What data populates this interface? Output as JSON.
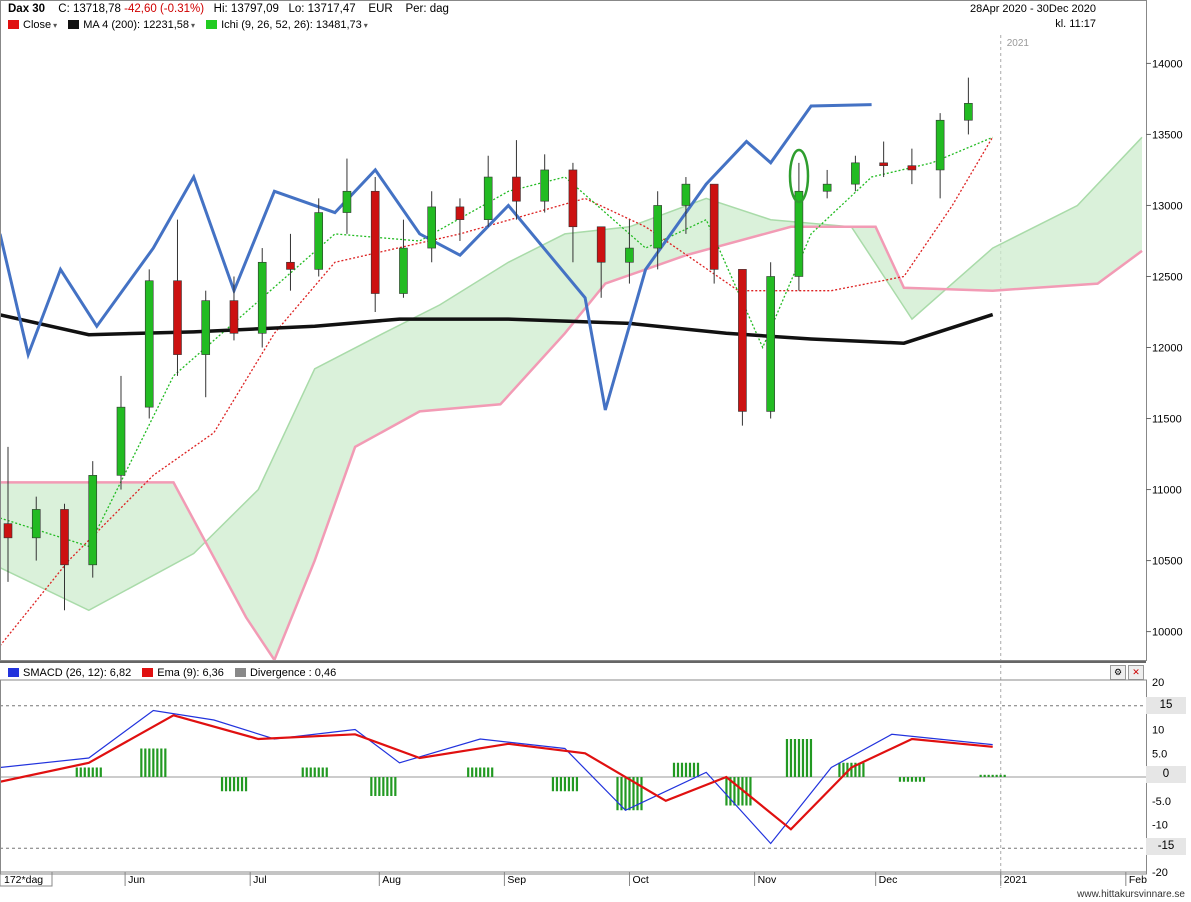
{
  "header": {
    "symbol": "Dax 30",
    "close": "C: 13718,78",
    "change": "-42,60 (-0.31%)",
    "high": "Hi: 13797,09",
    "low": "Lo: 13717,47",
    "currency": "EUR",
    "period": "Per: dag",
    "date_range": "28Apr 2020 - 30Dec 2020",
    "time": "kl. 11:17"
  },
  "legend": {
    "close": "Close",
    "ma": "MA 4 (200): 12231,58",
    "ichi": "Ichi (9, 26, 52, 26): 13481,73"
  },
  "lower_legend": {
    "smacd": "SMACD (26, 12): 6,82",
    "ema": "Ema (9): 6,36",
    "divergence": "Divergence : 0,46"
  },
  "axis": {
    "period_label": "172*dag",
    "year_label": "2021",
    "months": [
      "Jun",
      "Jul",
      "Aug",
      "Sep",
      "Oct",
      "Nov",
      "Dec",
      "2021",
      "Feb"
    ],
    "price_ticks": [
      "14000",
      "13500",
      "13000",
      "12500",
      "12000",
      "11500",
      "11000",
      "10500",
      "10000"
    ],
    "osc_ticks": [
      "20",
      "10",
      "5.0",
      "0",
      "-5.0",
      "-10",
      "-20"
    ],
    "osc_tags": [
      "15",
      "0",
      "-15"
    ]
  },
  "colors": {
    "up": "#22bb22",
    "down": "#cc1111",
    "ma": "#111111",
    "overlay": "#4472c4",
    "kumo_bull": "#cdeccd",
    "kumo_bear": "#fbd3de",
    "span_a": "#a9dba9",
    "span_b": "#f29bb5",
    "kijun": "#dd2222",
    "tenkan": "#22bb22",
    "smacd": "#2233dd",
    "ema": "#e01010",
    "hist": "#229922"
  },
  "footer": {
    "credit": "www.hittakursvinnare.se"
  },
  "chart_data": [
    {
      "type": "candlestick",
      "title": "Dax 30",
      "x_range": [
        "2020-04-28",
        "2020-12-30"
      ],
      "ylim": [
        9800,
        14200
      ],
      "series": [
        {
          "name": "Close",
          "type": "candlestick",
          "ohlc_weekly": [
            {
              "t": "2020-04-28",
              "o": 10760,
              "h": 11300,
              "l": 10350,
              "c": 10660
            },
            {
              "t": "2020-05-05",
              "o": 10660,
              "h": 10950,
              "l": 10500,
              "c": 10860
            },
            {
              "t": "2020-05-12",
              "o": 10860,
              "h": 10900,
              "l": 10150,
              "c": 10470
            },
            {
              "t": "2020-05-19",
              "o": 10470,
              "h": 11200,
              "l": 10380,
              "c": 11100
            },
            {
              "t": "2020-05-26",
              "o": 11100,
              "h": 11800,
              "l": 11000,
              "c": 11580
            },
            {
              "t": "2020-06-02",
              "o": 11580,
              "h": 12550,
              "l": 11500,
              "c": 12470
            },
            {
              "t": "2020-06-09",
              "o": 12470,
              "h": 12900,
              "l": 11800,
              "c": 11950
            },
            {
              "t": "2020-06-16",
              "o": 11950,
              "h": 12400,
              "l": 11650,
              "c": 12330
            },
            {
              "t": "2020-06-23",
              "o": 12330,
              "h": 12500,
              "l": 12050,
              "c": 12100
            },
            {
              "t": "2020-06-30",
              "o": 12100,
              "h": 12700,
              "l": 12000,
              "c": 12600
            },
            {
              "t": "2020-07-07",
              "o": 12600,
              "h": 12800,
              "l": 12400,
              "c": 12550
            },
            {
              "t": "2020-07-14",
              "o": 12550,
              "h": 13050,
              "l": 12500,
              "c": 12950
            },
            {
              "t": "2020-07-21",
              "o": 12950,
              "h": 13330,
              "l": 12800,
              "c": 13100
            },
            {
              "t": "2020-07-28",
              "o": 13100,
              "h": 13200,
              "l": 12250,
              "c": 12380
            },
            {
              "t": "2020-08-04",
              "o": 12380,
              "h": 12900,
              "l": 12350,
              "c": 12700
            },
            {
              "t": "2020-08-11",
              "o": 12700,
              "h": 13100,
              "l": 12600,
              "c": 12990
            },
            {
              "t": "2020-08-18",
              "o": 12990,
              "h": 13050,
              "l": 12750,
              "c": 12900
            },
            {
              "t": "2020-08-25",
              "o": 12900,
              "h": 13350,
              "l": 12850,
              "c": 13200
            },
            {
              "t": "2020-09-01",
              "o": 13200,
              "h": 13460,
              "l": 12900,
              "c": 13030
            },
            {
              "t": "2020-09-08",
              "o": 13030,
              "h": 13360,
              "l": 12950,
              "c": 13250
            },
            {
              "t": "2020-09-15",
              "o": 13250,
              "h": 13300,
              "l": 12600,
              "c": 12850
            },
            {
              "t": "2020-09-22",
              "o": 12850,
              "h": 12850,
              "l": 12350,
              "c": 12600
            },
            {
              "t": "2020-09-29",
              "o": 12600,
              "h": 12900,
              "l": 12450,
              "c": 12700
            },
            {
              "t": "2020-10-06",
              "o": 12700,
              "h": 13100,
              "l": 12550,
              "c": 13000
            },
            {
              "t": "2020-10-13",
              "o": 13000,
              "h": 13200,
              "l": 12800,
              "c": 13150
            },
            {
              "t": "2020-10-20",
              "o": 13150,
              "h": 13050,
              "l": 12450,
              "c": 12550
            },
            {
              "t": "2020-10-27",
              "o": 12550,
              "h": 12550,
              "l": 11450,
              "c": 11550
            },
            {
              "t": "2020-11-03",
              "o": 11550,
              "h": 12600,
              "l": 11500,
              "c": 12500
            },
            {
              "t": "2020-11-10",
              "o": 12500,
              "h": 13300,
              "l": 12400,
              "c": 13100
            },
            {
              "t": "2020-11-17",
              "o": 13100,
              "h": 13250,
              "l": 13050,
              "c": 13150
            },
            {
              "t": "2020-11-24",
              "o": 13150,
              "h": 13350,
              "l": 13100,
              "c": 13300
            },
            {
              "t": "2020-12-01",
              "o": 13300,
              "h": 13450,
              "l": 13200,
              "c": 13280
            },
            {
              "t": "2020-12-08",
              "o": 13280,
              "h": 13400,
              "l": 13150,
              "c": 13250
            },
            {
              "t": "2020-12-15",
              "o": 13250,
              "h": 13650,
              "l": 13050,
              "c": 13600
            },
            {
              "t": "2020-12-22",
              "o": 13600,
              "h": 13900,
              "l": 13500,
              "c": 13719
            }
          ]
        },
        {
          "name": "MA 4 (200)",
          "type": "line",
          "points": [
            [
              "2020-04-28",
              12230
            ],
            [
              "2020-05-20",
              12090
            ],
            [
              "2020-06-15",
              12110
            ],
            [
              "2020-07-15",
              12150
            ],
            [
              "2020-08-05",
              12200
            ],
            [
              "2020-09-01",
              12200
            ],
            [
              "2020-10-01",
              12170
            ],
            [
              "2020-10-25",
              12100
            ],
            [
              "2020-11-15",
              12060
            ],
            [
              "2020-12-08",
              12030
            ],
            [
              "2020-12-30",
              12231.58
            ]
          ]
        },
        {
          "name": "Ichi (9, 26, 52, 26)",
          "type": "ichimoku",
          "span_a": [
            [
              "2020-04-28",
              10450
            ],
            [
              "2020-05-20",
              10150
            ],
            [
              "2020-06-15",
              10550
            ],
            [
              "2020-07-01",
              11000
            ],
            [
              "2020-07-15",
              11850
            ],
            [
              "2020-08-01",
              12100
            ],
            [
              "2020-08-15",
              12300
            ],
            [
              "2020-09-01",
              12600
            ],
            [
              "2020-09-15",
              12800
            ],
            [
              "2020-10-01",
              12850
            ],
            [
              "2020-10-20",
              13050
            ],
            [
              "2020-11-05",
              12900
            ],
            [
              "2020-11-25",
              12850
            ],
            [
              "2020-12-10",
              12200
            ],
            [
              "2020-12-30",
              12700
            ],
            [
              "2021-01-20",
              13000
            ],
            [
              "2021-02-05",
              13480
            ]
          ],
          "span_b": [
            [
              "2020-04-28",
              11050
            ],
            [
              "2020-06-10",
              11050
            ],
            [
              "2020-06-28",
              10100
            ],
            [
              "2020-07-05",
              9800
            ],
            [
              "2020-07-15",
              10500
            ],
            [
              "2020-07-25",
              11300
            ],
            [
              "2020-08-10",
              11550
            ],
            [
              "2020-08-30",
              11600
            ],
            [
              "2020-09-15",
              12100
            ],
            [
              "2020-09-25",
              12450
            ],
            [
              "2020-10-15",
              12650
            ],
            [
              "2020-11-10",
              12850
            ],
            [
              "2020-12-01",
              12850
            ],
            [
              "2020-12-08",
              12420
            ],
            [
              "2020-12-30",
              12400
            ],
            [
              "2021-01-25",
              12450
            ],
            [
              "2021-02-05",
              12680
            ]
          ],
          "kijun": [
            [
              "2020-04-28",
              9900
            ],
            [
              "2020-05-15",
              10500
            ],
            [
              "2020-06-05",
              11100
            ],
            [
              "2020-06-20",
              11400
            ],
            [
              "2020-07-05",
              12100
            ],
            [
              "2020-07-20",
              12600
            ],
            [
              "2020-08-20",
              12800
            ],
            [
              "2020-09-20",
              13050
            ],
            [
              "2020-10-05",
              12850
            ],
            [
              "2020-10-28",
              12400
            ],
            [
              "2020-11-20",
              12400
            ],
            [
              "2020-12-08",
              12500
            ],
            [
              "2020-12-20",
              13000
            ],
            [
              "2020-12-30",
              13481.73
            ]
          ],
          "tenkan": [
            [
              "2020-04-28",
              10800
            ],
            [
              "2020-05-20",
              10600
            ],
            [
              "2020-06-10",
              11800
            ],
            [
              "2020-06-30",
              12300
            ],
            [
              "2020-07-20",
              12800
            ],
            [
              "2020-08-10",
              12750
            ],
            [
              "2020-09-01",
              13100
            ],
            [
              "2020-09-15",
              13200
            ],
            [
              "2020-10-05",
              12700
            ],
            [
              "2020-10-20",
              12900
            ],
            [
              "2020-11-03",
              12000
            ],
            [
              "2020-11-15",
              12800
            ],
            [
              "2020-11-30",
              13200
            ],
            [
              "2020-12-15",
              13300
            ],
            [
              "2020-12-30",
              13480
            ]
          ]
        },
        {
          "name": "overlay",
          "type": "line",
          "points": [
            [
              "2020-04-28",
              12800
            ],
            [
              "2020-05-05",
              11950
            ],
            [
              "2020-05-13",
              12550
            ],
            [
              "2020-05-22",
              12150
            ],
            [
              "2020-06-05",
              12700
            ],
            [
              "2020-06-15",
              13200
            ],
            [
              "2020-06-25",
              12400
            ],
            [
              "2020-07-05",
              13100
            ],
            [
              "2020-07-20",
              12950
            ],
            [
              "2020-07-30",
              13250
            ],
            [
              "2020-08-10",
              12800
            ],
            [
              "2020-08-20",
              12650
            ],
            [
              "2020-09-01",
              13000
            ],
            [
              "2020-09-20",
              12350
            ],
            [
              "2020-09-25",
              11560
            ],
            [
              "2020-10-05",
              12550
            ],
            [
              "2020-10-20",
              13150
            ],
            [
              "2020-10-30",
              13450
            ],
            [
              "2020-11-05",
              13300
            ],
            [
              "2020-11-15",
              13700
            ],
            [
              "2020-11-30",
              13710
            ]
          ]
        }
      ]
    },
    {
      "type": "line",
      "title": "SMACD",
      "ylim": [
        -20,
        20
      ],
      "series": [
        {
          "name": "SMACD (26, 12)",
          "points": [
            [
              "2020-04-28",
              2
            ],
            [
              "2020-05-20",
              4
            ],
            [
              "2020-06-05",
              14
            ],
            [
              "2020-06-20",
              12
            ],
            [
              "2020-07-05",
              8
            ],
            [
              "2020-07-25",
              10
            ],
            [
              "2020-08-05",
              3
            ],
            [
              "2020-08-25",
              8
            ],
            [
              "2020-09-15",
              6
            ],
            [
              "2020-09-30",
              -7
            ],
            [
              "2020-10-20",
              1
            ],
            [
              "2020-11-05",
              -14
            ],
            [
              "2020-11-20",
              2
            ],
            [
              "2020-12-05",
              9
            ],
            [
              "2020-12-30",
              6.82
            ]
          ]
        },
        {
          "name": "Ema (9)",
          "points": [
            [
              "2020-04-28",
              -1
            ],
            [
              "2020-05-20",
              3
            ],
            [
              "2020-06-10",
              13
            ],
            [
              "2020-07-01",
              8
            ],
            [
              "2020-07-25",
              9
            ],
            [
              "2020-08-10",
              4
            ],
            [
              "2020-09-01",
              7
            ],
            [
              "2020-09-20",
              5
            ],
            [
              "2020-10-10",
              -5
            ],
            [
              "2020-10-25",
              0
            ],
            [
              "2020-11-10",
              -11
            ],
            [
              "2020-11-25",
              2
            ],
            [
              "2020-12-10",
              8
            ],
            [
              "2020-12-30",
              6.36
            ]
          ]
        },
        {
          "name": "Divergence",
          "type": "bar",
          "points": [
            [
              "2020-05-20",
              2
            ],
            [
              "2020-06-05",
              6
            ],
            [
              "2020-06-25",
              -3
            ],
            [
              "2020-07-15",
              2
            ],
            [
              "2020-08-01",
              -4
            ],
            [
              "2020-08-25",
              2
            ],
            [
              "2020-09-15",
              -3
            ],
            [
              "2020-10-01",
              -7
            ],
            [
              "2020-10-15",
              3
            ],
            [
              "2020-10-28",
              -6
            ],
            [
              "2020-11-12",
              8
            ],
            [
              "2020-11-25",
              3
            ],
            [
              "2020-12-10",
              -1
            ],
            [
              "2020-12-30",
              0.46
            ]
          ]
        }
      ]
    }
  ]
}
